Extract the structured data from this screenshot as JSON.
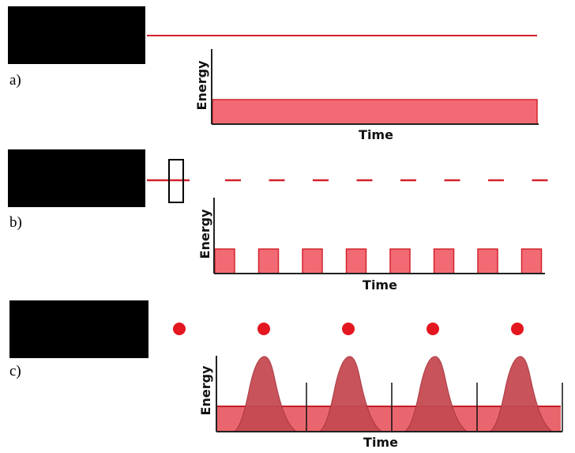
{
  "panels": [
    {
      "id": "a",
      "label": "a)",
      "mode": "continuous"
    },
    {
      "id": "b",
      "label": "b)",
      "mode": "chopped"
    },
    {
      "id": "c",
      "label": "c)",
      "mode": "pulsed"
    }
  ],
  "axes": {
    "xlabel": "Time",
    "ylabel": "Energy"
  },
  "counts": {
    "chopped_pulses": 8,
    "beam_dashes": 8,
    "pulsed_dots": 5,
    "pulsed_peaks": 4
  },
  "colors": {
    "laser_body": "#000000",
    "beam": "#d2222d",
    "fill": "#f26b74",
    "fill_dark": "#c9323e",
    "peak": "#c64a52",
    "axis": "#222222"
  }
}
